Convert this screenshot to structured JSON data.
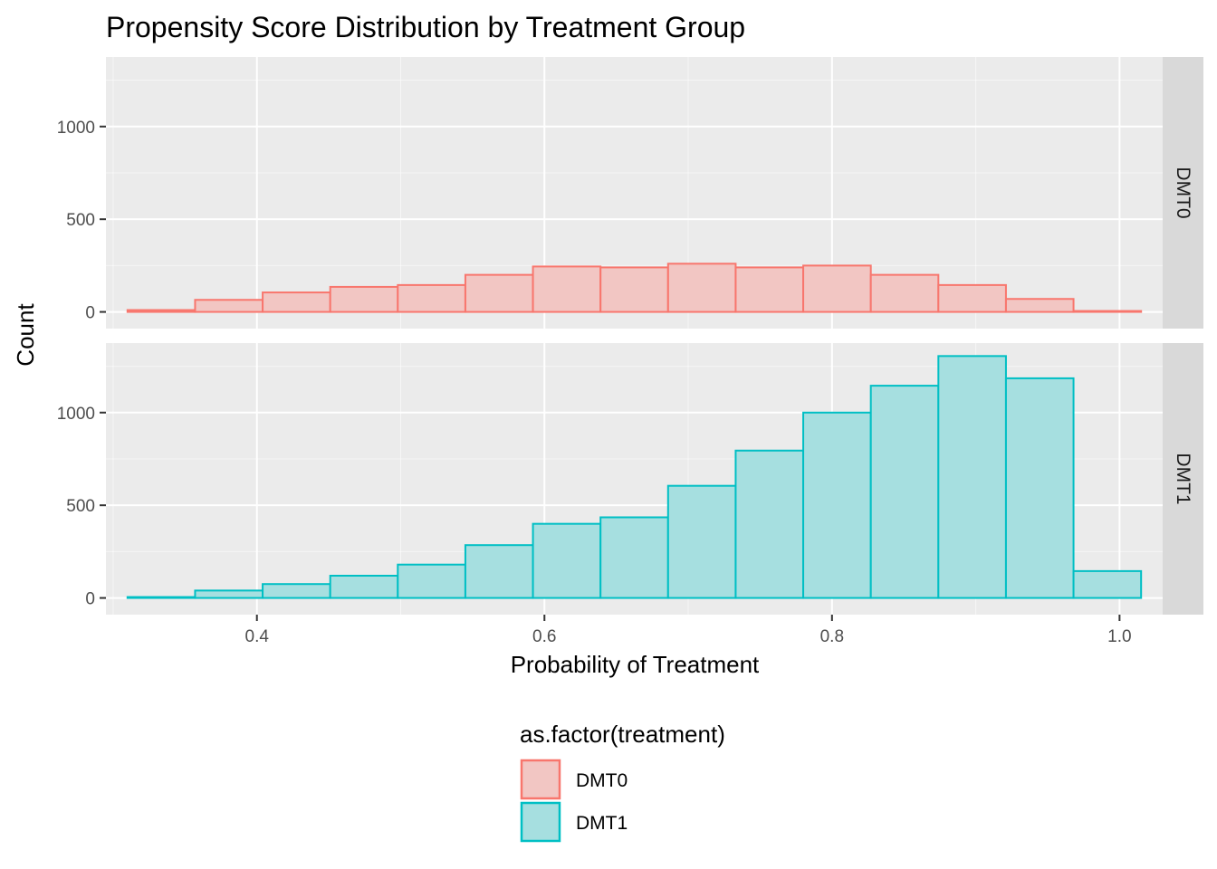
{
  "chart_data": {
    "type": "histogram",
    "title": "Propensity Score Distribution by Treatment Group",
    "xlabel": "Probability of Treatment",
    "ylabel": "Count",
    "xlim": [
      0.295,
      1.03
    ],
    "ylim": [
      -90,
      1375
    ],
    "x_ticks": [
      0.4,
      0.6,
      0.8,
      1.0
    ],
    "x_tick_labels": [
      "0.4",
      "0.6",
      "0.8",
      "1.0"
    ],
    "y_ticks": [
      0,
      500,
      1000
    ],
    "y_tick_labels": [
      "0",
      "500",
      "1000"
    ],
    "grid": true,
    "bins": [
      [
        0.31,
        0.357
      ],
      [
        0.357,
        0.404
      ],
      [
        0.404,
        0.451
      ],
      [
        0.451,
        0.498
      ],
      [
        0.498,
        0.545
      ],
      [
        0.545,
        0.592
      ],
      [
        0.592,
        0.639
      ],
      [
        0.639,
        0.686
      ],
      [
        0.686,
        0.733
      ],
      [
        0.733,
        0.78
      ],
      [
        0.78,
        0.827
      ],
      [
        0.827,
        0.874
      ],
      [
        0.874,
        0.921
      ],
      [
        0.921,
        0.968
      ],
      [
        0.968,
        1.015
      ]
    ],
    "panels": [
      {
        "strip": "DMT0",
        "series": "DMT0",
        "values": [
          10,
          65,
          105,
          135,
          145,
          200,
          245,
          240,
          260,
          240,
          250,
          200,
          145,
          70,
          5
        ]
      },
      {
        "strip": "DMT1",
        "series": "DMT1",
        "values": [
          5,
          40,
          75,
          120,
          180,
          285,
          400,
          435,
          605,
          795,
          1000,
          1145,
          1305,
          1185,
          145
        ]
      }
    ],
    "legend": {
      "title": "as.factor(treatment)",
      "position": "bottom",
      "entries": [
        "DMT0",
        "DMT1"
      ]
    },
    "colors": {
      "DMT0": {
        "stroke": "#f8766d",
        "fill": "#f2c6c3"
      },
      "DMT1": {
        "stroke": "#00bfc4",
        "fill": "#a6dfe0"
      },
      "panel_bg": "#ebebeb",
      "strip_bg": "#d9d9d9",
      "grid_major": "#ffffff"
    }
  }
}
